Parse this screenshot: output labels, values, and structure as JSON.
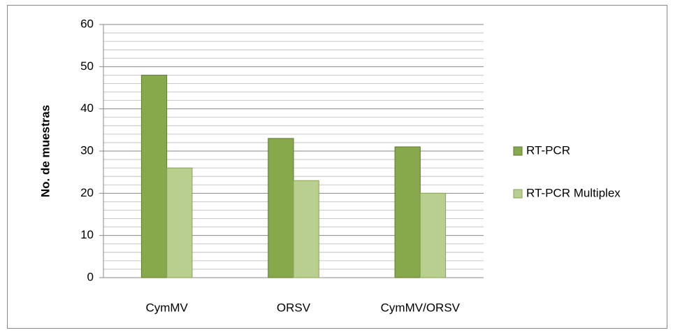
{
  "chart_data": {
    "type": "bar",
    "y_label": "No. de muestras",
    "categories": [
      "CymMV",
      "ORSV",
      "CymMV/ORSV"
    ],
    "series": [
      {
        "name": "RT-PCR",
        "color": "#87a84b",
        "values": [
          48,
          33,
          31
        ]
      },
      {
        "name": "RT-PCR Multiplex",
        "color": "#b9cf90",
        "values": [
          26,
          23,
          20
        ]
      }
    ],
    "ylim": [
      0,
      60
    ],
    "yticks": [
      0,
      10,
      20,
      30,
      40,
      50,
      60
    ],
    "minor_yticks": [
      2,
      4,
      6,
      8,
      12,
      14,
      16,
      18,
      22,
      24,
      26,
      28,
      32,
      34,
      36,
      38,
      42,
      44,
      46,
      48,
      52,
      54,
      56,
      58
    ],
    "grid": true,
    "legend": "right"
  }
}
